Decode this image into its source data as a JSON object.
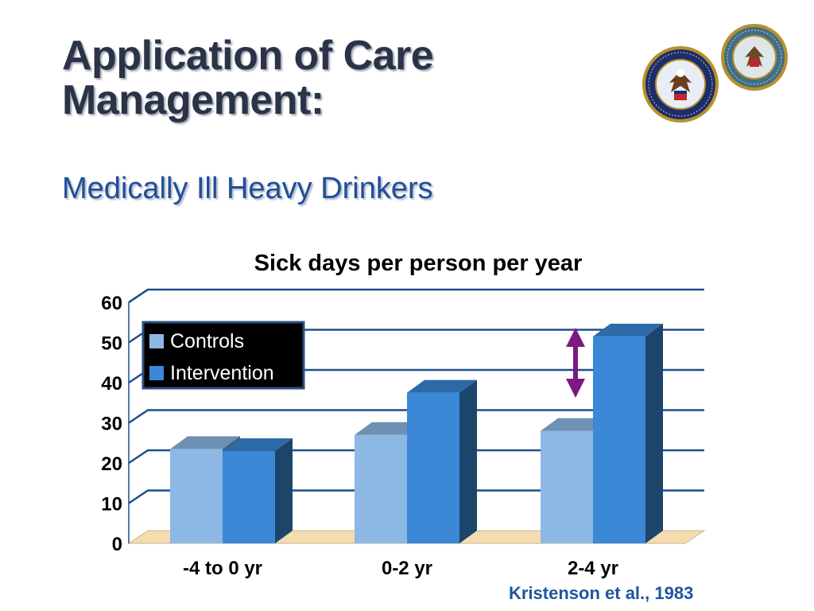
{
  "slide": {
    "title_line1": "Application of Care",
    "title_line2": "Management:",
    "subtitle": "Medically Ill Heavy Drinkers",
    "citation": "Kristenson et al., 1983"
  },
  "colors": {
    "title": "#2a3347",
    "subtitle": "#1f4e96",
    "controls": "#8db8e6",
    "intervention": "#3a88d6",
    "gridline": "#1f4e8c",
    "floor": "#f5dcb0",
    "arrow": "#7a1a82",
    "legend_bg": "#000000"
  },
  "chart_data": {
    "type": "bar",
    "title": "Sick days per person per year",
    "categories": [
      "-4 to 0 yr",
      "0-2 yr",
      "2-4 yr"
    ],
    "series": [
      {
        "name": "Controls",
        "values": [
          23.5,
          27,
          28
        ]
      },
      {
        "name": "Intervention",
        "values": [
          23,
          37.5,
          51.5
        ]
      }
    ],
    "ylim": [
      0,
      60
    ],
    "yticks": [
      "0",
      "10",
      "20",
      "30",
      "40",
      "50",
      "60"
    ],
    "xlabel": "",
    "ylabel": "",
    "grid": true,
    "legend": "top-left",
    "annotation": "double-headed arrow between the 2-4 yr bars",
    "style": "3d-bar"
  }
}
